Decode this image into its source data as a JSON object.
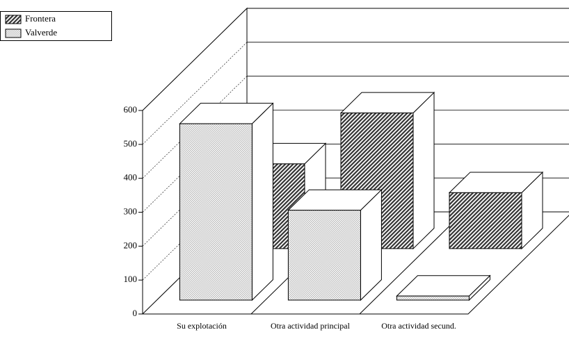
{
  "chart_data": {
    "type": "bar3d",
    "categories": [
      "Su explotación",
      "Otra actividad principal",
      "Otra actividad secund."
    ],
    "series": [
      {
        "name": "Frontera",
        "color": "#333333",
        "values": [
          250,
          400,
          165
        ]
      },
      {
        "name": "Valverde",
        "color": "#bbbbbb",
        "values": [
          520,
          265,
          12
        ]
      }
    ],
    "ylim": [
      0,
      600
    ],
    "yticks": [
      0,
      100,
      200,
      300,
      400,
      500,
      600
    ],
    "grid": true,
    "legend": "top-left"
  }
}
